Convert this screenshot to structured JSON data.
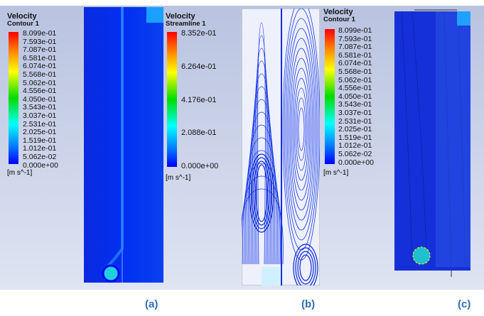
{
  "legend_a": {
    "title": "Velocity",
    "subtitle": "Contour 1",
    "ticks": [
      "8.099e-01",
      "7.593e-01",
      "7.087e-01",
      "6.581e-01",
      "6.074e-01",
      "5.568e-01",
      "5.062e-01",
      "4.556e-01",
      "4.050e-01",
      "3.543e-01",
      "3.037e-01",
      "2.531e-01",
      "2.025e-01",
      "1.519e-01",
      "1.012e-01",
      "5.062e-02",
      "0.000e+00"
    ],
    "unit": "[m s^-1]"
  },
  "legend_b": {
    "title": "Velocity",
    "subtitle": "Streamline 1",
    "ticks": [
      "8.352e-01",
      "6.264e-01",
      "4.176e-01",
      "2.088e-01",
      "0.000e+00"
    ],
    "unit": "[m s^-1]"
  },
  "legend_c": {
    "title": "Velocity",
    "subtitle": "Contour 1",
    "ticks": [
      "8.099e-01",
      "7.593e-01",
      "7.087e-01",
      "6.581e-01",
      "6.074e-01",
      "5.568e-01",
      "5.062e-01",
      "4.556e-01",
      "4.050e-01",
      "3.543e-01",
      "3.037e-01",
      "2.531e-01",
      "2.025e-01",
      "1.519e-01",
      "1.012e-01",
      "5.062e-02",
      "0.000e+00"
    ],
    "unit": "[m s^-1]"
  },
  "labels": {
    "a": "(a)",
    "b": "(b)",
    "c": "(c)"
  },
  "colors": {
    "colormap": [
      "#ff0000",
      "#ff8800",
      "#ffff00",
      "#00dd00",
      "#00ffff",
      "#0088ff",
      "#0000ff"
    ],
    "label": "#2f6eb5"
  }
}
